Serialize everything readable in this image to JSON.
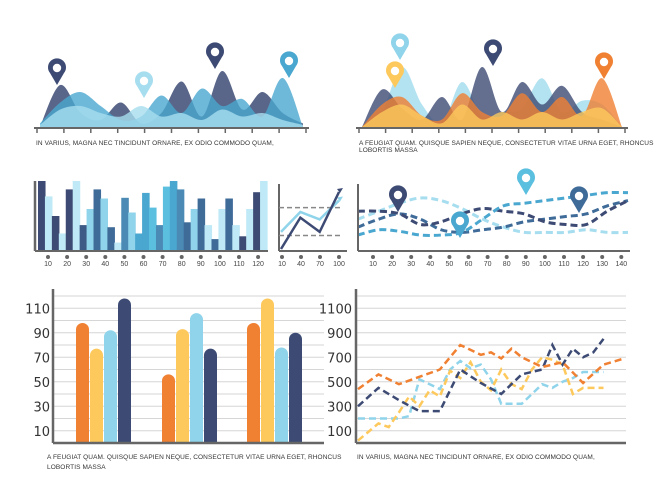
{
  "colors": {
    "navy": "#3d4b74",
    "navy_mid": "#4a6a96",
    "blue": "#4aa7cf",
    "light_blue": "#8fd4ea",
    "pale_blue": "#bfe9f6",
    "orange": "#f08032",
    "yellow": "#fdc95c",
    "axis": "#666666",
    "grid": "#d6d6d6"
  },
  "captions": {
    "top_left": "IN VARIUS, MAGNA NEC TINCIDUNT ORNARE, EX ODIO COMMODO QUAM,",
    "top_right": "A FEUGIAT QUAM. QUISQUE SAPIEN NEQUE, CONSECTETUR VITAE URNA EGET, RHONCUS LOBORTIS MASSA",
    "bottom_left_line1": "A FEUGIAT QUAM. QUISQUE SAPIEN NEQUE, CONSECTETUR VITAE URNA EGET, RHONCUS",
    "bottom_left_line2": "LOBORTIS MASSA",
    "bottom_right": "IN VARIUS, MAGNA NEC TINCIDUNT ORNARE, EX ODIO COMMODO QUAM,"
  },
  "chart_data": [
    {
      "id": "area-left",
      "type": "area",
      "series": [
        {
          "name": "navy",
          "color": "#3d4b74",
          "values": [
            0,
            60,
            20,
            10,
            35,
            5,
            20,
            65,
            15,
            80,
            25,
            50,
            20,
            5
          ]
        },
        {
          "name": "blue",
          "color": "#4aa7cf",
          "values": [
            5,
            35,
            50,
            30,
            10,
            15,
            45,
            20,
            55,
            30,
            40,
            15,
            70,
            0
          ]
        },
        {
          "name": "pale",
          "color": "#a6ddef",
          "values": [
            3,
            25,
            30,
            20,
            15,
            30,
            15,
            20,
            10,
            25,
            15,
            20,
            10,
            3
          ]
        }
      ],
      "markers": [
        {
          "color": "#3d4b74"
        },
        {
          "color": "#a6ddef"
        },
        {
          "color": "#3d4b74"
        },
        {
          "color": "#4aa7cf"
        }
      ],
      "caption": "IN VARIUS, MAGNA NEC TINCIDUNT ORNARE, EX ODIO COMMODO QUAM,"
    },
    {
      "id": "area-right",
      "type": "area",
      "series": [
        {
          "name": "light",
          "color": "#a6ddef",
          "values": [
            0,
            20,
            80,
            30,
            5,
            60,
            15,
            20,
            25,
            65,
            20,
            35,
            30,
            0
          ]
        },
        {
          "name": "navy",
          "color": "#3d4b74",
          "values": [
            0,
            50,
            25,
            10,
            40,
            10,
            80,
            20,
            60,
            30,
            55,
            20,
            10,
            0
          ]
        },
        {
          "name": "orange",
          "color": "#f08032",
          "values": [
            0,
            30,
            40,
            15,
            10,
            45,
            20,
            15,
            45,
            20,
            40,
            15,
            65,
            0
          ]
        },
        {
          "name": "yellow",
          "color": "#fdc95c",
          "values": [
            0,
            20,
            30,
            15,
            5,
            30,
            10,
            20,
            10,
            20,
            10,
            20,
            25,
            0
          ]
        }
      ],
      "markers": [
        {
          "color": "#8fd4ea"
        },
        {
          "color": "#fdc95c"
        },
        {
          "color": "#3d4b74"
        },
        {
          "color": "#f08032"
        }
      ],
      "caption": "A FEUGIAT QUAM. QUISQUE SAPIEN NEQUE, CONSECTETUR VITAE URNA EGET, RHONCUS LOBORTIS MASSA"
    },
    {
      "id": "bars-histogram",
      "type": "bar",
      "x_ticks": [
        "10",
        "20",
        "30",
        "40",
        "50",
        "60",
        "70",
        "80",
        "90",
        "100",
        "110",
        "120"
      ],
      "values": [
        100,
        78,
        50,
        25,
        88,
        100,
        37,
        60,
        88,
        75,
        34,
        12,
        76,
        55,
        25,
        83,
        62,
        37,
        92,
        100,
        88,
        41,
        60,
        75,
        37,
        17,
        60,
        75,
        37,
        21,
        60,
        84,
        100
      ],
      "colors": [
        "#3d4b74",
        "#bfe9f6",
        "#3d4b74",
        "#bfe9f6",
        "#3d4b74",
        "#bfe9f6",
        "#3d5a86",
        "#8fd4ea",
        "#3f6b99",
        "#8fd4ea",
        "#3f6b99",
        "#bfe9f6",
        "#4a8ab5",
        "#8fd4ea",
        "#4aa7cf",
        "#4aa7cf",
        "#5bbfe0",
        "#4a8ab5",
        "#5bbfe0",
        "#4aa7cf",
        "#4a8ab5",
        "#3f6b99",
        "#8fd4ea",
        "#3f6b99",
        "#bfe9f6",
        "#3f6b99",
        "#bfe9f6",
        "#3f6b99",
        "#bfe9f6",
        "#3d4b74",
        "#bfe9f6",
        "#3d4b74",
        "#bfe9f6"
      ]
    },
    {
      "id": "small-line",
      "type": "line",
      "x_ticks": [
        "10",
        "40",
        "70",
        "100"
      ],
      "series": [
        {
          "name": "light",
          "color": "#8fd4ea",
          "values": [
            30,
            65,
            52,
            85
          ]
        },
        {
          "name": "navy",
          "color": "#3d4b74",
          "values": [
            0,
            55,
            30,
            100
          ]
        }
      ],
      "guides": [
        70,
        25
      ]
    },
    {
      "id": "dashed-waves",
      "type": "line",
      "x_ticks": [
        "10",
        "20",
        "30",
        "40",
        "50",
        "60",
        "70",
        "80",
        "90",
        "100",
        "110",
        "120",
        "130",
        "140"
      ],
      "series": [
        {
          "name": "pale",
          "color": "#a6ddef",
          "values": [
            45,
            60,
            75,
            85,
            80,
            65,
            45,
            30,
            20,
            20,
            20,
            25,
            20,
            20
          ]
        },
        {
          "name": "navy",
          "color": "#3d4b74",
          "values": [
            60,
            60,
            55,
            35,
            40,
            55,
            65,
            60,
            55,
            40,
            35,
            35,
            60,
            80
          ]
        },
        {
          "name": "mid",
          "color": "#3f6b99",
          "values": [
            30,
            45,
            55,
            45,
            25,
            20,
            25,
            30,
            40,
            45,
            50,
            55,
            70,
            80
          ]
        },
        {
          "name": "blue",
          "color": "#4aa7cf",
          "values": [
            15,
            25,
            22,
            15,
            15,
            20,
            45,
            70,
            75,
            80,
            85,
            90,
            95,
            95
          ]
        }
      ],
      "markers": [
        {
          "color": "#3d4b74"
        },
        {
          "color": "#4aa7cf"
        },
        {
          "color": "#5bbfe0"
        },
        {
          "color": "#3f6b99"
        }
      ]
    },
    {
      "id": "grouped-bars",
      "type": "bar",
      "y_ticks": [
        "110",
        "90",
        "70",
        "50",
        "30",
        "10"
      ],
      "ylim": [
        0,
        120
      ],
      "groups": 3,
      "series": [
        {
          "name": "orange",
          "color": "#f08032",
          "values": [
            98,
            56,
            98
          ]
        },
        {
          "name": "yellow",
          "color": "#fdc95c",
          "values": [
            77,
            93,
            118
          ]
        },
        {
          "name": "light_blue",
          "color": "#8fd4ea",
          "values": [
            92,
            106,
            78
          ]
        },
        {
          "name": "navy",
          "color": "#3d4b74",
          "values": [
            118,
            77,
            90
          ]
        }
      ],
      "caption": "A FEUGIAT QUAM. QUISQUE SAPIEN NEQUE, CONSECTETUR VITAE URNA EGET, RHONCUS LOBORTIS MASSA"
    },
    {
      "id": "dashed-lines",
      "type": "line",
      "y_ticks": [
        "1100",
        "900",
        "700",
        "500",
        "300",
        "100"
      ],
      "ylim": [
        0,
        1200
      ],
      "series": [
        {
          "name": "orange",
          "color": "#f08032",
          "x": [
            0,
            1,
            2,
            3,
            4,
            5,
            6,
            6.5,
            7,
            7.5,
            8,
            9,
            10,
            11,
            12,
            13
          ],
          "values": [
            440,
            560,
            480,
            540,
            600,
            800,
            720,
            740,
            690,
            770,
            700,
            620,
            660,
            490,
            640,
            690
          ]
        },
        {
          "name": "navy",
          "color": "#3d4b74",
          "x": [
            0,
            1,
            2,
            3,
            4,
            5,
            6,
            7,
            8,
            9,
            9.5,
            10,
            10.5,
            11,
            11.5,
            12
          ],
          "values": [
            300,
            450,
            350,
            260,
            260,
            600,
            490,
            400,
            560,
            600,
            800,
            640,
            770,
            700,
            740,
            850
          ]
        },
        {
          "name": "yellow",
          "color": "#fdc95c",
          "x": [
            0,
            1,
            1.5,
            2,
            2.5,
            3,
            3.5,
            4,
            4.5,
            5,
            5.5,
            6,
            6.5,
            7,
            7.5,
            8,
            8.5,
            9,
            9.5,
            10,
            10.5,
            11,
            11.5,
            12
          ],
          "values": [
            20,
            160,
            130,
            250,
            380,
            300,
            430,
            380,
            590,
            530,
            660,
            500,
            430,
            600,
            480,
            440,
            600,
            700,
            680,
            640,
            400,
            450,
            450,
            450
          ]
        },
        {
          "name": "light_blue",
          "color": "#8fd4ea",
          "x": [
            0,
            1,
            2,
            2.5,
            3,
            3.5,
            4,
            4.5,
            5,
            5.5,
            6,
            6.5,
            7,
            8,
            8.5,
            9,
            9.5,
            10,
            10.5,
            11,
            11.5,
            12
          ],
          "values": [
            200,
            200,
            200,
            220,
            520,
            480,
            440,
            600,
            670,
            610,
            640,
            520,
            320,
            320,
            400,
            480,
            450,
            500,
            530,
            580,
            580,
            580
          ]
        }
      ],
      "caption": "IN VARIUS, MAGNA NEC TINCIDUNT ORNARE, EX ODIO COMMODO QUAM,"
    }
  ]
}
